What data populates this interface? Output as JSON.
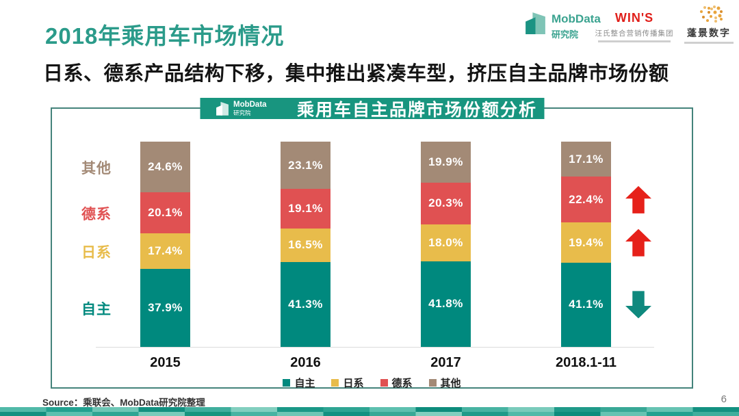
{
  "slide": {
    "title": "2018年乘用车市场情况",
    "subtitle": "日系、德系产品结构下移，集中推出紧凑车型，挤压自主品牌市场份额",
    "source": "Source：乘联会、MobData研究院整理",
    "page_number": "6",
    "accent_colors": {
      "title_teal": "#2B9B8A",
      "banner_teal": "#18957F"
    }
  },
  "header_logos": {
    "mobdata": {
      "name": "MobData",
      "sub": "研究院"
    },
    "wins": {
      "name": "WIN'S",
      "sub": "汪氏整合营销传播集团"
    },
    "pengjing": {
      "name": "蓬景数字"
    }
  },
  "chart_header": {
    "logo_name": "MobData",
    "logo_sub": "研究院",
    "title": "乘用车自主品牌市场份额分析"
  },
  "chart_data": {
    "type": "bar",
    "stacked": true,
    "categories": [
      "2015",
      "2016",
      "2017",
      "2018.1-11"
    ],
    "series": [
      {
        "name": "自主",
        "color": "#00897E",
        "values": [
          37.9,
          41.3,
          41.8,
          41.1
        ]
      },
      {
        "name": "日系",
        "color": "#E8BC4B",
        "values": [
          17.4,
          16.5,
          18.0,
          19.4
        ]
      },
      {
        "name": "德系",
        "color": "#E05152",
        "values": [
          20.1,
          19.1,
          20.3,
          22.4
        ]
      },
      {
        "name": "其他",
        "color": "#A38A76",
        "values": [
          24.6,
          23.1,
          19.9,
          17.1
        ]
      }
    ],
    "value_suffix": "%",
    "ylim": [
      0,
      100
    ],
    "grid": false,
    "legend": [
      "自主",
      "日系",
      "德系",
      "其他"
    ],
    "legend_position": "bottom",
    "trends": [
      {
        "series": "德系",
        "direction": "up"
      },
      {
        "series": "日系",
        "direction": "up"
      },
      {
        "series": "自主",
        "direction": "down"
      }
    ],
    "arrow_colors": {
      "up": "#E6211A",
      "down": "#0F897E"
    }
  }
}
